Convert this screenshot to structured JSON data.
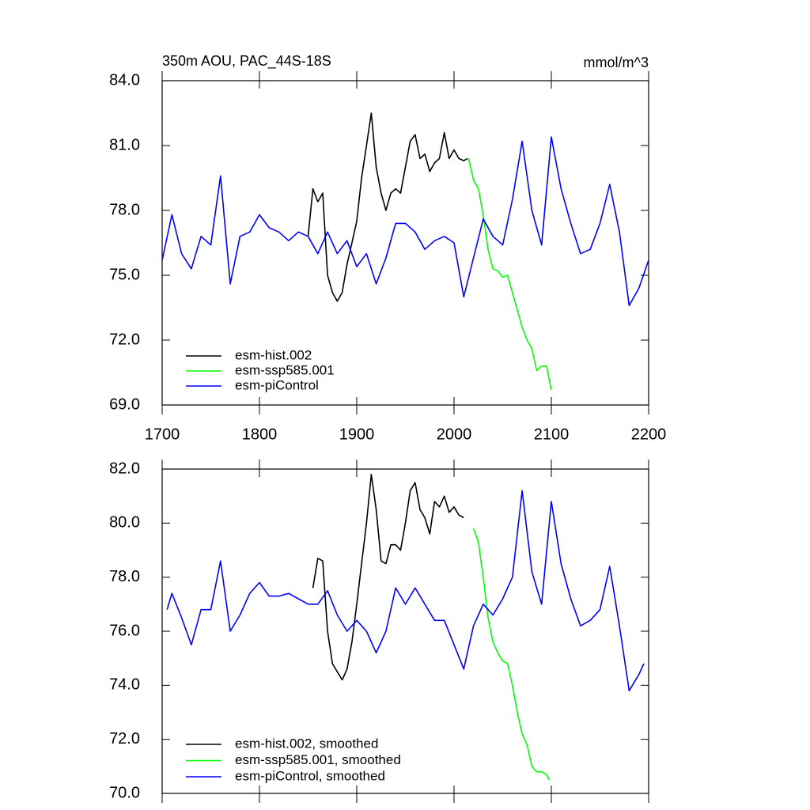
{
  "chart_data": [
    {
      "type": "line",
      "title": "350m AOU, PAC_44S-18S",
      "units": "mmol/m^3",
      "xlim": [
        1700,
        2200
      ],
      "xticks": [
        1700,
        1800,
        1900,
        2000,
        2100,
        2200
      ],
      "ylim": [
        69,
        84
      ],
      "yticks": [
        {
          "value": 69,
          "label": "69.0"
        },
        {
          "value": 72,
          "label": "72.0"
        },
        {
          "value": 75,
          "label": "75.0"
        },
        {
          "value": 78,
          "label": "78.0"
        },
        {
          "value": 81,
          "label": "81.0"
        },
        {
          "value": 84,
          "label": "84.0"
        }
      ],
      "legend": "lower left",
      "series": [
        {
          "name": "esm-hist.002",
          "color": "#000000",
          "x": [
            1850,
            1855,
            1860,
            1865,
            1870,
            1875,
            1880,
            1885,
            1890,
            1895,
            1900,
            1905,
            1910,
            1915,
            1920,
            1925,
            1930,
            1935,
            1940,
            1945,
            1950,
            1955,
            1960,
            1965,
            1970,
            1975,
            1980,
            1985,
            1990,
            1995,
            2000,
            2005,
            2010,
            2014
          ],
          "values": [
            76.8,
            79.0,
            78.4,
            78.8,
            75.0,
            74.2,
            73.8,
            74.2,
            75.5,
            76.5,
            77.5,
            79.5,
            81.0,
            82.5,
            80.0,
            78.8,
            78.0,
            78.8,
            79.0,
            78.8,
            80.0,
            81.2,
            81.5,
            80.4,
            80.6,
            79.8,
            80.2,
            80.4,
            81.6,
            80.4,
            80.8,
            80.4,
            80.3,
            80.4
          ]
        },
        {
          "name": "esm-ssp585.001",
          "color": "#00ff00",
          "x": [
            2015,
            2020,
            2025,
            2030,
            2035,
            2040,
            2045,
            2050,
            2055,
            2060,
            2065,
            2070,
            2075,
            2080,
            2085,
            2090,
            2095,
            2100
          ],
          "values": [
            80.4,
            79.4,
            79.0,
            77.8,
            76.2,
            75.3,
            75.2,
            74.9,
            75.0,
            74.2,
            73.4,
            72.6,
            72.0,
            71.6,
            70.6,
            70.8,
            70.8,
            69.7
          ]
        },
        {
          "name": "esm-piControl",
          "color": "#0000ff",
          "x": [
            1700,
            1710,
            1720,
            1730,
            1740,
            1750,
            1760,
            1770,
            1780,
            1790,
            1800,
            1810,
            1820,
            1830,
            1840,
            1850,
            1860,
            1870,
            1880,
            1890,
            1900,
            1910,
            1920,
            1930,
            1940,
            1950,
            1960,
            1970,
            1980,
            1990,
            2000,
            2010,
            2020,
            2030,
            2040,
            2050,
            2060,
            2070,
            2080,
            2090,
            2100,
            2110,
            2120,
            2130,
            2140,
            2150,
            2160,
            2170,
            2180,
            2190,
            2200
          ],
          "values": [
            75.7,
            77.8,
            76.0,
            75.3,
            76.8,
            76.4,
            79.6,
            74.6,
            76.8,
            77.0,
            77.8,
            77.2,
            77.0,
            76.6,
            77.0,
            76.8,
            76.0,
            77.0,
            76.0,
            76.6,
            75.4,
            76.0,
            74.6,
            75.8,
            77.4,
            77.4,
            77.0,
            76.2,
            76.6,
            76.8,
            76.5,
            74.0,
            75.8,
            77.6,
            76.8,
            76.4,
            78.5,
            81.2,
            78.0,
            76.4,
            81.4,
            79.0,
            77.4,
            76.0,
            76.2,
            77.4,
            79.2,
            77.0,
            73.6,
            74.4,
            75.7
          ]
        }
      ]
    },
    {
      "type": "line",
      "xlim": [
        1700,
        2200
      ],
      "ylim": [
        70,
        82
      ],
      "yticks": [
        {
          "value": 70,
          "label": "70.0"
        },
        {
          "value": 72,
          "label": "72.0"
        },
        {
          "value": 74,
          "label": "74.0"
        },
        {
          "value": 76,
          "label": "76.0"
        },
        {
          "value": 78,
          "label": "78.0"
        },
        {
          "value": 80,
          "label": "80.0"
        },
        {
          "value": 82,
          "label": "82.0"
        }
      ],
      "legend": "lower left",
      "series": [
        {
          "name": "esm-hist.002, smoothed",
          "color": "#000000",
          "x": [
            1855,
            1860,
            1865,
            1870,
            1875,
            1880,
            1885,
            1890,
            1895,
            1900,
            1905,
            1910,
            1915,
            1920,
            1925,
            1930,
            1935,
            1940,
            1945,
            1950,
            1955,
            1960,
            1965,
            1970,
            1975,
            1980,
            1985,
            1990,
            1995,
            2000,
            2005,
            2010
          ],
          "values": [
            77.6,
            78.7,
            78.6,
            76.0,
            74.8,
            74.5,
            74.2,
            74.6,
            75.6,
            77.0,
            78.5,
            80.0,
            81.8,
            80.5,
            78.6,
            78.5,
            79.2,
            79.2,
            79.0,
            80.0,
            81.2,
            81.5,
            80.5,
            80.2,
            79.6,
            80.8,
            80.6,
            81.0,
            80.4,
            80.6,
            80.3,
            80.2
          ]
        },
        {
          "name": "esm-ssp585.001, smoothed",
          "color": "#00ff00",
          "x": [
            2020,
            2025,
            2030,
            2035,
            2040,
            2045,
            2050,
            2055,
            2060,
            2065,
            2070,
            2075,
            2080,
            2085,
            2090,
            2095,
            2098
          ],
          "values": [
            79.8,
            79.3,
            78.0,
            76.5,
            75.6,
            75.2,
            74.9,
            74.8,
            74.0,
            73.0,
            72.2,
            71.8,
            71.0,
            70.8,
            70.8,
            70.7,
            70.5
          ]
        },
        {
          "name": "esm-piControl, smoothed",
          "color": "#0000ff",
          "x": [
            1705,
            1710,
            1720,
            1730,
            1740,
            1750,
            1760,
            1770,
            1780,
            1790,
            1800,
            1810,
            1820,
            1830,
            1840,
            1850,
            1860,
            1870,
            1880,
            1890,
            1900,
            1910,
            1920,
            1930,
            1940,
            1950,
            1960,
            1970,
            1980,
            1990,
            2000,
            2010,
            2020,
            2030,
            2040,
            2050,
            2060,
            2070,
            2080,
            2090,
            2100,
            2110,
            2120,
            2130,
            2140,
            2150,
            2160,
            2170,
            2180,
            2190,
            2195
          ],
          "values": [
            76.8,
            77.4,
            76.5,
            75.5,
            76.8,
            76.8,
            78.6,
            76.0,
            76.6,
            77.4,
            77.8,
            77.3,
            77.3,
            77.4,
            77.2,
            77.0,
            77.0,
            77.5,
            76.6,
            76.0,
            76.4,
            76.0,
            75.2,
            76.0,
            77.6,
            77.0,
            77.6,
            77.0,
            76.4,
            76.4,
            75.5,
            74.6,
            76.2,
            77.0,
            76.6,
            77.2,
            78.0,
            81.2,
            78.2,
            77.0,
            80.8,
            78.5,
            77.2,
            76.2,
            76.4,
            76.8,
            78.4,
            76.2,
            73.8,
            74.4,
            74.8
          ]
        }
      ]
    }
  ]
}
